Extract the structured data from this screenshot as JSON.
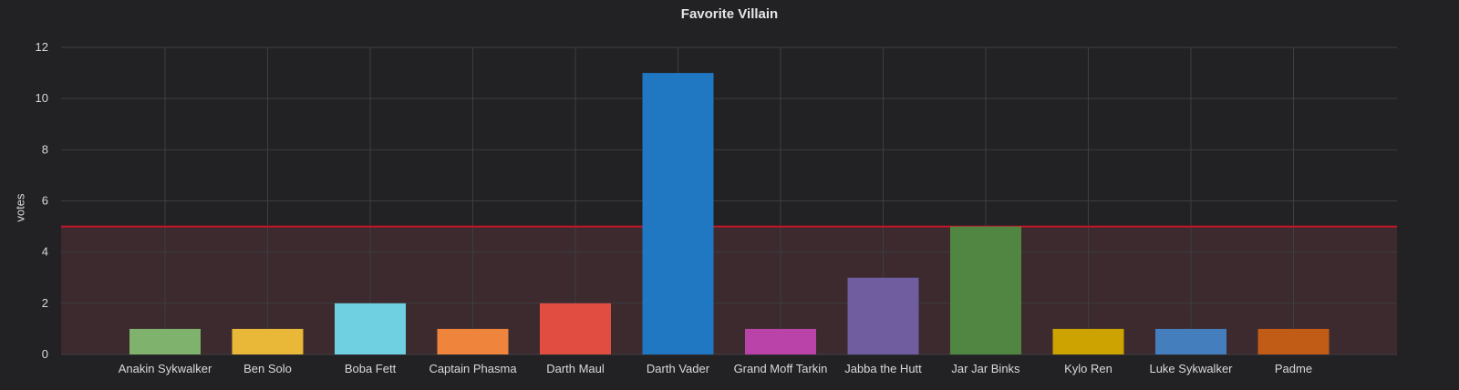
{
  "panel": {
    "title": "Favorite Villain"
  },
  "chart_data": {
    "type": "bar",
    "title": "Favorite Villain",
    "xlabel": "",
    "ylabel": "votes",
    "ylim": [
      0,
      12
    ],
    "yticks": [
      0,
      2,
      4,
      6,
      8,
      10,
      12
    ],
    "grid": true,
    "legend": "none",
    "categories": [
      "Anakin Sykwalker",
      "Ben Solo",
      "Boba Fett",
      "Captain Phasma",
      "Darth Maul",
      "Darth Vader",
      "Grand Moff Tarkin",
      "Jabba the Hutt",
      "Jar Jar Binks",
      "Kylo Ren",
      "Luke Sykwalker",
      "Padme"
    ],
    "values": [
      1,
      1,
      2,
      1,
      2,
      11,
      1,
      3,
      5,
      1,
      1,
      1
    ],
    "bar_colors": [
      "#7eb26d",
      "#eab839",
      "#6ed0e0",
      "#ef843c",
      "#e24d42",
      "#1f78c1",
      "#ba43a9",
      "#705da0",
      "#508642",
      "#cca300",
      "#447ebc",
      "#c15c17"
    ],
    "threshold": {
      "value": 5,
      "line_color": "#c4162a",
      "fill_color": "#3c2a2e"
    }
  }
}
